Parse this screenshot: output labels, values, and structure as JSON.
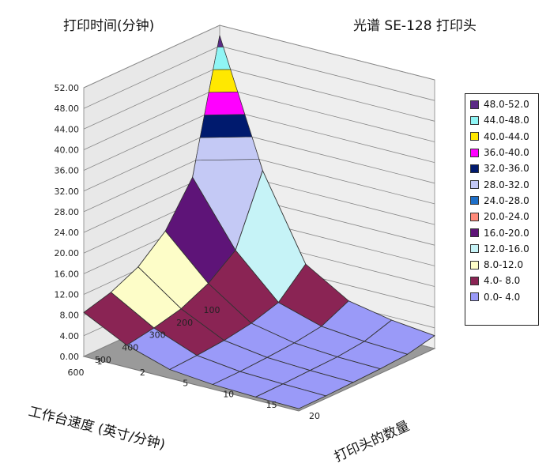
{
  "chart_data": {
    "type": "surface",
    "title": "光谱 SE-128 打印头",
    "zlabel": "打印时间(分钟)",
    "xlabel": "工作台速度 (英寸/分钟)",
    "ylabel": "打印头的数量",
    "zlim": [
      0,
      52
    ],
    "z_ticks": [
      "0.00",
      "4.00",
      "8.00",
      "12.00",
      "16.00",
      "20.00",
      "24.00",
      "28.00",
      "32.00",
      "36.00",
      "40.00",
      "44.00",
      "48.00",
      "52.00"
    ],
    "x_ticks": [
      "100",
      "200",
      "300",
      "400",
      "500",
      "600"
    ],
    "y_ticks": [
      "1",
      "2",
      "5",
      "10",
      "15",
      "20"
    ],
    "grid": true,
    "legend_position": "right",
    "legend": [
      {
        "label": "48.0-52.0",
        "color": "#5b2a86"
      },
      {
        "label": "44.0-48.0",
        "color": "#8ff5f5"
      },
      {
        "label": "40.0-44.0",
        "color": "#ffe800"
      },
      {
        "label": "36.0-40.0",
        "color": "#ff00ff"
      },
      {
        "label": "32.0-36.0",
        "color": "#001a6e"
      },
      {
        "label": "28.0-32.0",
        "color": "#c4c9f5"
      },
      {
        "label": "24.0-28.0",
        "color": "#1e6fc8"
      },
      {
        "label": "20.0-24.0",
        "color": "#ff8a7a"
      },
      {
        "label": "16.0-20.0",
        "color": "#5e1478"
      },
      {
        "label": "12.0-16.0",
        "color": "#c6f3f7"
      },
      {
        "label": " 8.0-12.0",
        "color": "#fdfdc8"
      },
      {
        "label": " 4.0- 8.0",
        "color": "#8a2454"
      },
      {
        "label": " 0.0- 4.0",
        "color": "#9a9af8"
      }
    ],
    "speeds": [
      100,
      200,
      300,
      400,
      500,
      600
    ],
    "heads": [
      1,
      2,
      5,
      10,
      15,
      20
    ],
    "values": [
      [
        50,
        26,
        10,
        5,
        3.4,
        2.5
      ],
      [
        25,
        13,
        5,
        2.5,
        1.7,
        1.3
      ],
      [
        17,
        9,
        3.4,
        1.7,
        1.1,
        0.9
      ],
      [
        12.5,
        6.5,
        2.5,
        1.3,
        0.9,
        0.7
      ],
      [
        10,
        5.2,
        2,
        1,
        0.7,
        0.5
      ],
      [
        8.5,
        4.3,
        1.7,
        0.9,
        0.6,
        0.45
      ]
    ]
  }
}
